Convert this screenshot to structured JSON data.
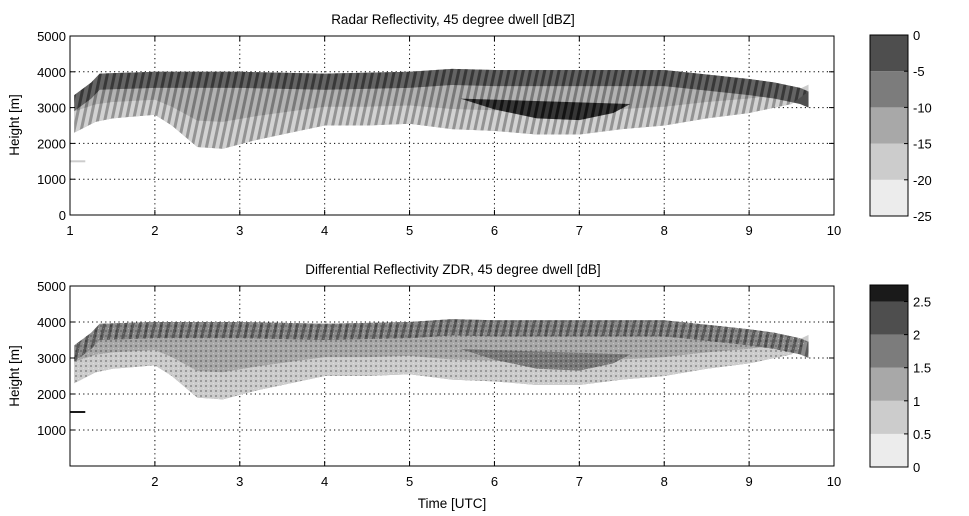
{
  "chart_data": [
    {
      "type": "heatmap",
      "title": "Radar Reflectivity, 45 degree dwell [dBZ]",
      "xlabel": "",
      "ylabel": "Height [m]",
      "xlim": [
        1,
        10
      ],
      "ylim": [
        0,
        5000
      ],
      "xticks": [
        "1",
        "2",
        "3",
        "4",
        "5",
        "6",
        "7",
        "8",
        "9",
        "10"
      ],
      "yticks": [
        "0",
        "1000",
        "2000",
        "3000",
        "4000",
        "5000"
      ],
      "grid": true,
      "colorbar": {
        "ticks": [
          "-25",
          "-20",
          "-15",
          "-10",
          "-5",
          "0"
        ],
        "range": [
          -25,
          0
        ],
        "levels": [
          {
            "from": -25,
            "to": -20,
            "color": "#ececec"
          },
          {
            "from": -20,
            "to": -15,
            "color": "#cccccc"
          },
          {
            "from": -15,
            "to": -10,
            "color": "#a8a8a8"
          },
          {
            "from": -10,
            "to": -5,
            "color": "#7c7c7c"
          },
          {
            "from": -5,
            "to": 0,
            "color": "#4e4e4e"
          },
          {
            "from": 0,
            "to": 5,
            "color": "#1a1a1a"
          }
        ]
      },
      "cloud": {
        "top": [
          [
            1.05,
            3350
          ],
          [
            1.25,
            3700
          ],
          [
            1.35,
            3950
          ],
          [
            2,
            4000
          ],
          [
            3,
            4000
          ],
          [
            4,
            3950
          ],
          [
            5,
            4000
          ],
          [
            5.5,
            4080
          ],
          [
            6,
            4050
          ],
          [
            7,
            4050
          ],
          [
            8,
            4050
          ],
          [
            8.6,
            3900
          ],
          [
            9,
            3800
          ],
          [
            9.3,
            3700
          ],
          [
            9.6,
            3550
          ],
          [
            9.7,
            3450
          ]
        ],
        "base": [
          [
            1.05,
            2300
          ],
          [
            1.3,
            2600
          ],
          [
            1.5,
            2700
          ],
          [
            2,
            2800
          ],
          [
            2.2,
            2500
          ],
          [
            2.5,
            1900
          ],
          [
            2.8,
            1850
          ],
          [
            3.2,
            2100
          ],
          [
            3.6,
            2300
          ],
          [
            4,
            2500
          ],
          [
            4.5,
            2500
          ],
          [
            5,
            2550
          ],
          [
            5.5,
            2400
          ],
          [
            6,
            2350
          ],
          [
            6.5,
            2250
          ],
          [
            7,
            2250
          ],
          [
            7.5,
            2400
          ],
          [
            8,
            2500
          ],
          [
            8.5,
            2700
          ],
          [
            9,
            2850
          ],
          [
            9.5,
            3100
          ],
          [
            9.7,
            3450
          ]
        ],
        "core": [
          [
            5.6,
            3250
          ],
          [
            6.0,
            2950
          ],
          [
            6.5,
            2700
          ],
          [
            7.0,
            2650
          ],
          [
            7.4,
            2850
          ],
          [
            7.6,
            3100
          ]
        ],
        "small_echo": [
          [
            1.0,
            1500
          ],
          [
            1.18,
            1500
          ]
        ]
      }
    },
    {
      "type": "heatmap",
      "title": "Differential Reflectivity ZDR, 45 degree dwell [dB]",
      "xlabel": "Time [UTC]",
      "ylabel": "Height [m]",
      "xlim": [
        1,
        10
      ],
      "ylim": [
        0,
        5000
      ],
      "xticks": [
        "2",
        "3",
        "4",
        "5",
        "6",
        "7",
        "8",
        "9",
        "10"
      ],
      "yticks": [
        "1000",
        "2000",
        "3000",
        "4000",
        "5000"
      ],
      "grid": true,
      "colorbar": {
        "ticks": [
          "0",
          "0.5",
          "1",
          "1.5",
          "2",
          "2.5"
        ],
        "range": [
          0,
          2.75
        ],
        "levels": [
          {
            "from": 0,
            "to": 0.5,
            "color": "#ececec"
          },
          {
            "from": 0.5,
            "to": 1,
            "color": "#cccccc"
          },
          {
            "from": 1,
            "to": 1.5,
            "color": "#a8a8a8"
          },
          {
            "from": 1.5,
            "to": 2,
            "color": "#7c7c7c"
          },
          {
            "from": 2,
            "to": 2.5,
            "color": "#4e4e4e"
          },
          {
            "from": 2.5,
            "to": 3,
            "color": "#1a1a1a"
          }
        ]
      },
      "cloud": {
        "top": [
          [
            1.05,
            3350
          ],
          [
            1.25,
            3700
          ],
          [
            1.35,
            3950
          ],
          [
            2,
            4000
          ],
          [
            3,
            4000
          ],
          [
            4,
            3950
          ],
          [
            5,
            4000
          ],
          [
            5.5,
            4080
          ],
          [
            6,
            4050
          ],
          [
            7,
            4050
          ],
          [
            8,
            4050
          ],
          [
            8.6,
            3900
          ],
          [
            9,
            3800
          ],
          [
            9.3,
            3700
          ],
          [
            9.6,
            3550
          ],
          [
            9.7,
            3450
          ]
        ],
        "base": [
          [
            1.05,
            2300
          ],
          [
            1.3,
            2600
          ],
          [
            1.5,
            2700
          ],
          [
            2,
            2800
          ],
          [
            2.2,
            2500
          ],
          [
            2.5,
            1900
          ],
          [
            2.8,
            1850
          ],
          [
            3.2,
            2100
          ],
          [
            3.6,
            2300
          ],
          [
            4,
            2500
          ],
          [
            4.5,
            2500
          ],
          [
            5,
            2550
          ],
          [
            5.5,
            2400
          ],
          [
            6,
            2350
          ],
          [
            6.5,
            2250
          ],
          [
            7,
            2250
          ],
          [
            7.5,
            2400
          ],
          [
            8,
            2500
          ],
          [
            8.5,
            2700
          ],
          [
            9,
            2850
          ],
          [
            9.5,
            3100
          ],
          [
            9.7,
            3450
          ]
        ],
        "core": [
          [
            5.6,
            3250
          ],
          [
            6.0,
            2950
          ],
          [
            6.5,
            2700
          ],
          [
            7.0,
            2650
          ],
          [
            7.4,
            2850
          ],
          [
            7.6,
            3100
          ]
        ],
        "small_echo": [
          [
            1.0,
            1500
          ],
          [
            1.18,
            1500
          ]
        ]
      }
    }
  ]
}
